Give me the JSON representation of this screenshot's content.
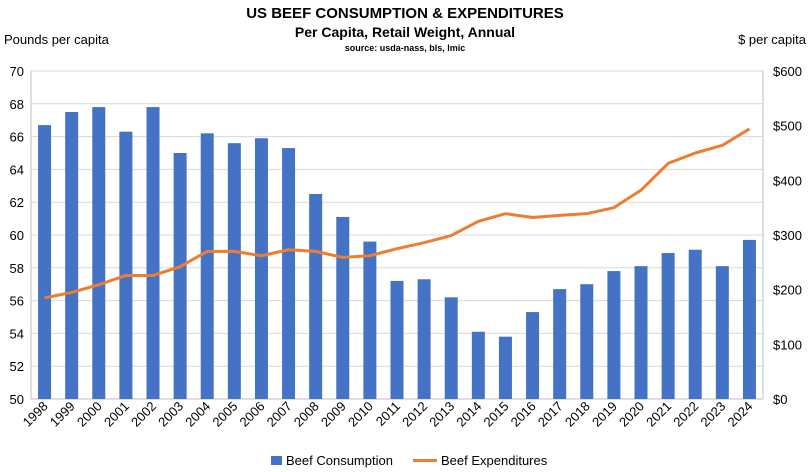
{
  "chart_data": {
    "type": "bar+line",
    "title": "US BEEF CONSUMPTION & EXPENDITURES",
    "subtitle": "Per Capita, Retail Weight, Annual",
    "source": "source: usda-nass, bls, lmic",
    "ylabel_left": "Pounds per capita",
    "ylabel_right": "$ per capita",
    "ylim_left": [
      50,
      70
    ],
    "yticks_left": [
      "50",
      "52",
      "54",
      "56",
      "58",
      "60",
      "62",
      "64",
      "66",
      "68",
      "70"
    ],
    "ylim_right": [
      0,
      600
    ],
    "yticks_right": [
      "$0",
      "$100",
      "$200",
      "$300",
      "$400",
      "$500",
      "$600"
    ],
    "grid": true,
    "legend": "bottom",
    "categories": [
      "1998",
      "1999",
      "2000",
      "2001",
      "2002",
      "2003",
      "2004",
      "2005",
      "2006",
      "2007",
      "2008",
      "2009",
      "2010",
      "2011",
      "2012",
      "2013",
      "2014",
      "2015",
      "2016",
      "2017",
      "2018",
      "2019",
      "2020",
      "2021",
      "2022",
      "2023",
      "2024"
    ],
    "series": [
      {
        "name": "Beef Consumption",
        "type": "bar",
        "axis": "left",
        "color": "#4472C4",
        "values": [
          66.7,
          67.5,
          67.8,
          66.3,
          67.8,
          65.0,
          66.2,
          65.6,
          65.9,
          65.3,
          62.5,
          61.1,
          59.6,
          57.2,
          57.3,
          56.2,
          54.1,
          53.8,
          55.3,
          56.7,
          57.0,
          57.8,
          58.1,
          58.9,
          59.1,
          58.1,
          59.7
        ]
      },
      {
        "name": "Beef Expenditures",
        "type": "line",
        "axis": "right",
        "color": "#ED7D31",
        "values": [
          185,
          195,
          209,
          226,
          226,
          242,
          270,
          270,
          262,
          273,
          270,
          259,
          262,
          275,
          286,
          299,
          325,
          339,
          332,
          336,
          339,
          350,
          382,
          431,
          450,
          464,
          494
        ]
      }
    ]
  }
}
